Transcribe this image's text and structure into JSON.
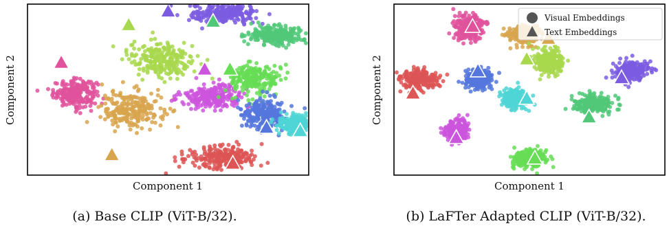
{
  "chart_data": [
    {
      "type": "scatter",
      "caption": "(a) Base CLIP (ViT-B/32).",
      "xlabel": "Component 1",
      "ylabel": "Component 2",
      "xticks": "none",
      "yticks": "none",
      "grid": false,
      "legend": "none",
      "marker_legend": {
        "circle": "Visual Embeddings",
        "triangle": "Text Embeddings"
      },
      "classes": [
        {
          "color": "#e0529c",
          "visual_center": [
            0.17,
            0.48
          ],
          "visual_spread": [
            0.07,
            0.07
          ],
          "text": [
            0.12,
            0.66
          ]
        },
        {
          "color": "#d8a44e",
          "visual_center": [
            0.37,
            0.38
          ],
          "visual_spread": [
            0.1,
            0.1
          ],
          "text": [
            0.3,
            0.12
          ]
        },
        {
          "color": "#a8d84e",
          "visual_center": [
            0.48,
            0.68
          ],
          "visual_spread": [
            0.11,
            0.1
          ],
          "text": [
            0.36,
            0.88
          ]
        },
        {
          "color": "#7b5ce0",
          "visual_center": [
            0.7,
            0.94
          ],
          "visual_spread": [
            0.11,
            0.05
          ],
          "text": [
            0.5,
            0.96
          ]
        },
        {
          "color": "#50c878",
          "visual_center": [
            0.88,
            0.82
          ],
          "visual_spread": [
            0.09,
            0.05
          ],
          "text": [
            0.66,
            0.9
          ]
        },
        {
          "color": "#cc55dd",
          "visual_center": [
            0.66,
            0.46
          ],
          "visual_spread": [
            0.1,
            0.06
          ],
          "text": [
            0.63,
            0.62
          ]
        },
        {
          "color": "#66dd55",
          "visual_center": [
            0.81,
            0.56
          ],
          "visual_spread": [
            0.08,
            0.08
          ],
          "text": [
            0.72,
            0.62
          ]
        },
        {
          "color": "#5577dd",
          "visual_center": [
            0.84,
            0.36
          ],
          "visual_spread": [
            0.07,
            0.08
          ],
          "text": [
            0.85,
            0.28
          ]
        },
        {
          "color": "#4fd5d5",
          "visual_center": [
            0.95,
            0.3
          ],
          "visual_spread": [
            0.05,
            0.05
          ],
          "text": [
            0.97,
            0.26
          ]
        },
        {
          "color": "#dd5555",
          "visual_center": [
            0.7,
            0.1
          ],
          "visual_spread": [
            0.12,
            0.06
          ],
          "text": [
            0.73,
            0.07
          ]
        }
      ]
    },
    {
      "type": "scatter",
      "caption": "(b) LaFTer Adapted CLIP (ViT-B/32).",
      "xlabel": "Component 1",
      "ylabel": "Component 2",
      "xticks": "none",
      "yticks": "none",
      "grid": false,
      "legend": "top-right",
      "marker_legend": {
        "circle": "Visual Embeddings",
        "triangle": "Text Embeddings"
      },
      "classes": [
        {
          "color": "#e0529c",
          "visual_center": [
            0.28,
            0.86
          ],
          "visual_spread": [
            0.05,
            0.07
          ],
          "text": [
            0.29,
            0.87
          ]
        },
        {
          "color": "#d8a44e",
          "visual_center": [
            0.48,
            0.82
          ],
          "visual_spread": [
            0.05,
            0.05
          ],
          "text": [
            0.57,
            0.8
          ]
        },
        {
          "color": "#a8d84e",
          "visual_center": [
            0.57,
            0.66
          ],
          "visual_spread": [
            0.05,
            0.07
          ],
          "text": [
            0.49,
            0.68
          ]
        },
        {
          "color": "#dd5555",
          "visual_center": [
            0.09,
            0.56
          ],
          "visual_spread": [
            0.07,
            0.05
          ],
          "text": [
            0.07,
            0.48
          ]
        },
        {
          "color": "#5577dd",
          "visual_center": [
            0.31,
            0.56
          ],
          "visual_spread": [
            0.05,
            0.05
          ],
          "text": [
            0.31,
            0.61
          ]
        },
        {
          "color": "#4fd5d5",
          "visual_center": [
            0.44,
            0.45
          ],
          "visual_spread": [
            0.04,
            0.05
          ],
          "text": [
            0.49,
            0.45
          ]
        },
        {
          "color": "#50c878",
          "visual_center": [
            0.74,
            0.42
          ],
          "visual_spread": [
            0.06,
            0.05
          ],
          "text": [
            0.72,
            0.34
          ]
        },
        {
          "color": "#7b5ce0",
          "visual_center": [
            0.88,
            0.61
          ],
          "visual_spread": [
            0.06,
            0.05
          ],
          "text": [
            0.84,
            0.57
          ]
        },
        {
          "color": "#cc55dd",
          "visual_center": [
            0.23,
            0.26
          ],
          "visual_spread": [
            0.04,
            0.06
          ],
          "text": [
            0.23,
            0.22
          ]
        },
        {
          "color": "#66dd55",
          "visual_center": [
            0.5,
            0.1
          ],
          "visual_spread": [
            0.05,
            0.05
          ],
          "text": [
            0.52,
            0.1
          ]
        }
      ]
    }
  ]
}
